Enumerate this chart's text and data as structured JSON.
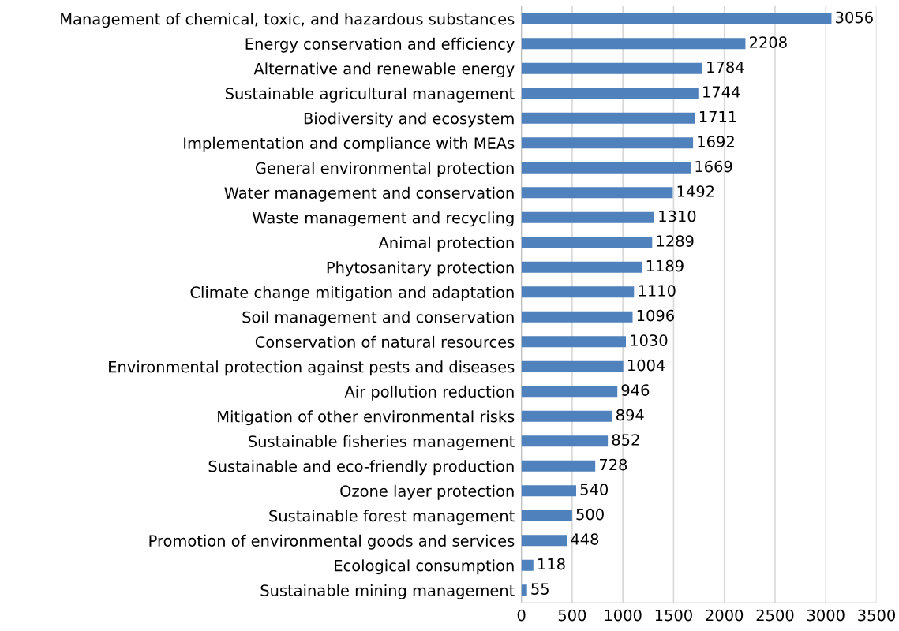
{
  "chart_data": {
    "type": "bar",
    "orientation": "horizontal",
    "categories": [
      "Management of chemical, toxic, and hazardous substances",
      "Energy conservation and efficiency",
      "Alternative and renewable energy",
      "Sustainable agricultural management",
      "Biodiversity and ecosystem",
      "Implementation and compliance with MEAs",
      "General environmental protection",
      "Water management and conservation",
      "Waste management and recycling",
      "Animal protection",
      "Phytosanitary protection",
      "Climate change mitigation and adaptation",
      "Soil management and conservation",
      "Conservation of natural resources",
      "Environmental protection against pests and diseases",
      "Air pollution reduction",
      "Mitigation of other environmental risks",
      "Sustainable fisheries management",
      "Sustainable and eco-friendly production",
      "Ozone layer protection",
      "Sustainable forest management",
      "Promotion of environmental goods and services",
      "Ecological consumption",
      "Sustainable mining management"
    ],
    "values": [
      3056,
      2208,
      1784,
      1744,
      1711,
      1692,
      1669,
      1492,
      1310,
      1289,
      1189,
      1110,
      1096,
      1030,
      1004,
      946,
      894,
      852,
      728,
      540,
      500,
      448,
      118,
      55
    ],
    "color": "#4f81bd",
    "data_labels": true,
    "xlim": [
      0,
      3500
    ],
    "xticks": [
      0,
      500,
      1000,
      1500,
      2000,
      2500,
      3000,
      3500
    ],
    "grid": "x"
  }
}
